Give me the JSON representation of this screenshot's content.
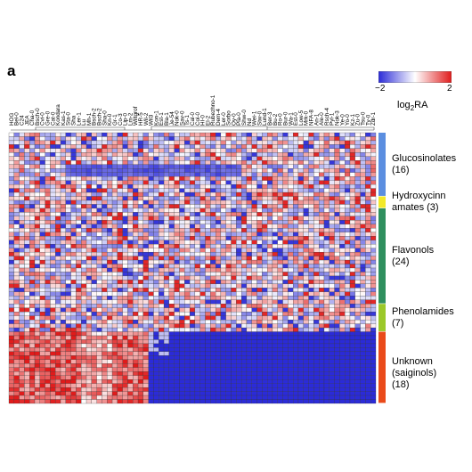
{
  "panel_letter": "a",
  "colorbar": {
    "min_label": "−2",
    "max_label": "2",
    "title_main": "log",
    "title_sub": "2",
    "title_tail": "RA",
    "low_color": "#2b2bd8",
    "mid_color": "#ffffff",
    "high_color": "#e01b1b"
  },
  "chart_data": {
    "type": "heatmap",
    "title": "",
    "value_label": "log2RA",
    "value_range": [
      -2,
      2
    ],
    "columns": [
      "HOG",
      "Bel-0",
      "C24",
      "JEA",
      "Cha-0",
      "Bsch-0",
      "Cvi-0",
      "Gre-0",
      "Cat-0",
      "Kondara",
      "Kas-1",
      "Sta-0",
      "Sha",
      "Ler-1",
      "Lu",
      "Mh-1",
      "Bsch-2",
      "Bsch-2",
      "Sha-0",
      "Kn-0",
      "Gr-1",
      "Co-3",
      "Lip-0",
      "Lm-2",
      "Wiltgrof",
      "HR-5",
      "Wil-2",
      "Wil3",
      "Kon-1",
      "Est-1",
      "Bla-1",
      "Je-54",
      "Nok-0",
      "Sav-0",
      "Ts-1",
      "Cal-0",
      "Col-0",
      "HI-0",
      "El-2",
      "Rubezhno-1",
      "Dem-4",
      "Ler-0",
      "Sorbo",
      "Oy-0",
      "Pla-0",
      "Shw-0",
      "Nd",
      "Wei-1",
      "Stw-0",
      "Lund-1",
      "Ber-3",
      "Bu-2",
      "Ro-0",
      "Bur-0",
      "Wa-1",
      "Est-0",
      "Low-5",
      "Mrk-0",
      "NFA-8",
      "An-1",
      "Ale-0",
      "Rsch-4",
      "Pyl-1",
      "Nok-3",
      "Ye-0",
      "Yo-0",
      "Kz-1",
      "Zu-0",
      "Tsu-0",
      "Ty-0",
      "Zdr-1"
    ],
    "groups": [
      {
        "name": "Glucosinolates",
        "count_label": "(16)",
        "rows": 16,
        "color": "#5b8ee0"
      },
      {
        "name": "Hydroxycinnamates",
        "name_lines": [
          "Hydroxycinn",
          "amates (3)"
        ],
        "count_label": "",
        "rows": 3,
        "color": "#f2e92a"
      },
      {
        "name": "Flavonols",
        "count_label": "(24)",
        "rows": 24,
        "color": "#2f8f5e"
      },
      {
        "name": "Phenolamides",
        "count_label": "(7)",
        "rows": 7,
        "color": "#9bc82a"
      },
      {
        "name": "Unknown (saiginols)",
        "count_label": "(18)",
        "rows": 18,
        "color": "#ea4a1a"
      }
    ],
    "notes": "Individual cell values are not legible; the saiginol block shows high values (red) for the first ~27 accessions and uniformly low values (blue, about -2) for the rest."
  }
}
